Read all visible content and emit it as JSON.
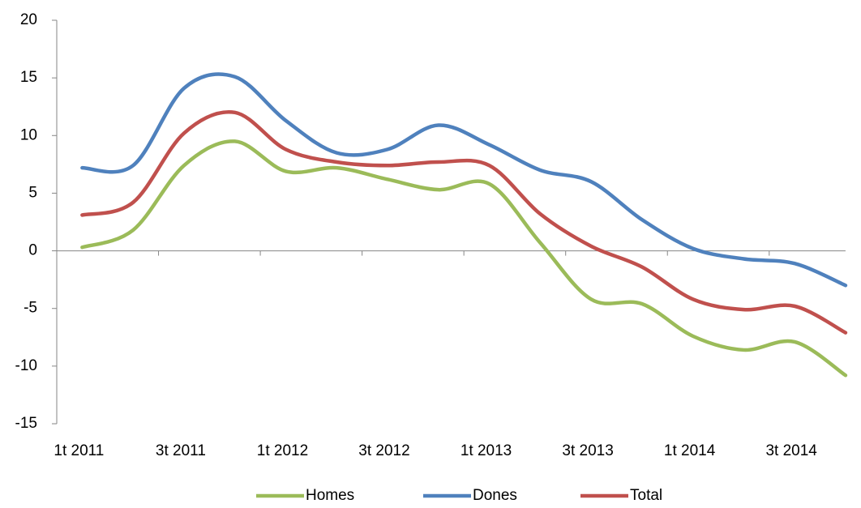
{
  "chart_data": {
    "type": "line",
    "categories": [
      "1t 2011",
      null,
      "3t 2011",
      null,
      "1t 2012",
      null,
      "3t 2012",
      null,
      "1t 2013",
      null,
      "3t 2013",
      null,
      "1t 2014",
      null,
      "3t 2014",
      null
    ],
    "series": [
      {
        "name": "Homes",
        "color": "#9bbb59",
        "values": [
          0.3,
          1.8,
          7.4,
          9.5,
          6.9,
          7.2,
          6.2,
          5.3,
          5.8,
          0.7,
          -4.2,
          -4.6,
          -7.4,
          -8.6,
          -7.9,
          -10.8
        ]
      },
      {
        "name": "Dones",
        "color": "#4f81bd",
        "values": [
          7.2,
          7.4,
          14.1,
          15.1,
          11.3,
          8.5,
          8.8,
          10.9,
          9.2,
          7.0,
          6.0,
          2.7,
          0.2,
          -0.7,
          -1.1,
          -3.0
        ]
      },
      {
        "name": "Total",
        "color": "#c0504d",
        "values": [
          3.1,
          4.2,
          10.2,
          12.0,
          8.8,
          7.7,
          7.4,
          7.7,
          7.4,
          3.2,
          0.4,
          -1.4,
          -4.2,
          -5.1,
          -4.8,
          -7.1
        ]
      }
    ],
    "ylim": [
      -15,
      20
    ],
    "yticks": [
      -15,
      -10,
      -5,
      0,
      5,
      10,
      15,
      20
    ],
    "legend": "bottom"
  }
}
